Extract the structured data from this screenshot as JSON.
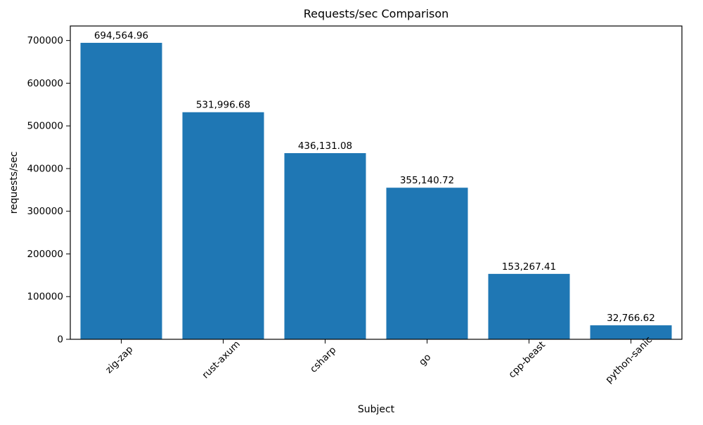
{
  "chart_data": {
    "type": "bar",
    "title": "Requests/sec Comparison",
    "xlabel": "Subject",
    "ylabel": "requests/sec",
    "categories": [
      "zig-zap",
      "rust-axum",
      "csharp",
      "go",
      "cpp-beast",
      "python-sanic"
    ],
    "values": [
      694564.96,
      531996.68,
      436131.08,
      355140.72,
      153267.41,
      32766.62
    ],
    "value_labels": [
      "694,564.96",
      "531,996.68",
      "436,131.08",
      "355,140.72",
      "153,267.41",
      "32,766.62"
    ],
    "yticks": [
      0,
      100000,
      200000,
      300000,
      400000,
      500000,
      600000,
      700000
    ],
    "ylim": [
      0,
      734000
    ],
    "bar_color": "#1f77b4",
    "grid": false
  }
}
